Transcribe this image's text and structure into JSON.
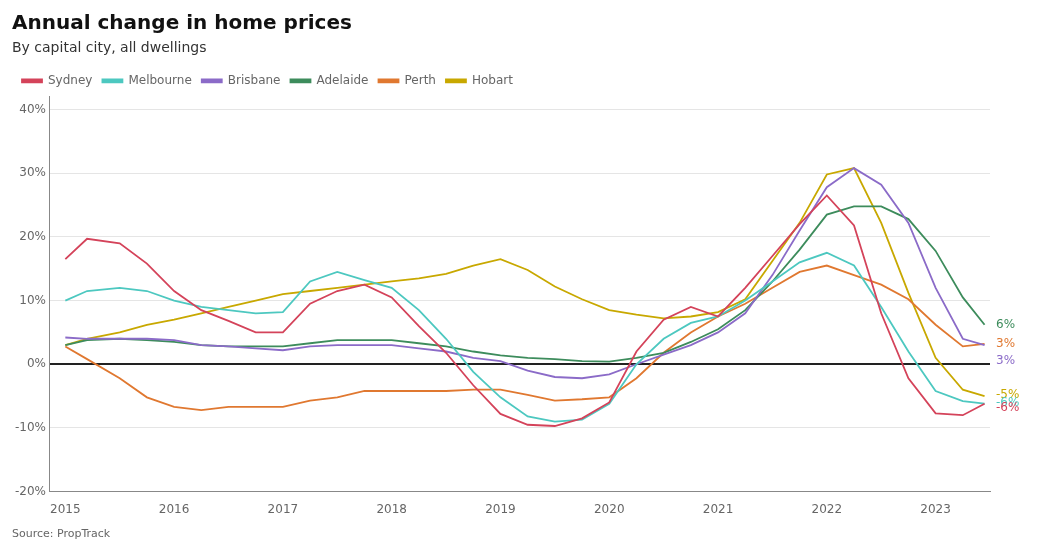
{
  "chart_data": {
    "type": "line",
    "title": "Annual change in home prices",
    "subtitle": "By capital city, all dwellings",
    "source": "Source: PropTrack",
    "legend": "top",
    "grid": true,
    "xlim": [
      2014.85,
      2023.5
    ],
    "xticks": [
      2015,
      2016,
      2017,
      2018,
      2019,
      2020,
      2021,
      2022,
      2023
    ],
    "ylim": [
      -0.2,
      0.42
    ],
    "yticks": [
      {
        "value": -0.2,
        "label": "-20%"
      },
      {
        "value": -0.1,
        "label": "-10%"
      },
      {
        "value": 0.0,
        "label": "0%"
      },
      {
        "value": 0.1,
        "label": "10%"
      },
      {
        "value": 0.2,
        "label": "20%"
      },
      {
        "value": 0.3,
        "label": "30%"
      },
      {
        "value": 0.4,
        "label": "40%"
      }
    ],
    "x": [
      2015.0,
      2015.2,
      2015.5,
      2015.75,
      2016.0,
      2016.25,
      2016.5,
      2016.75,
      2017.0,
      2017.25,
      2017.5,
      2017.75,
      2018.0,
      2018.25,
      2018.5,
      2018.75,
      2019.0,
      2019.25,
      2019.5,
      2019.75,
      2020.0,
      2020.25,
      2020.5,
      2020.75,
      2021.0,
      2021.25,
      2021.5,
      2021.75,
      2022.0,
      2022.25,
      2022.5,
      2022.75,
      2023.0,
      2023.25,
      2023.45
    ],
    "series": [
      {
        "name": "Sydney",
        "color": "#d4435a",
        "values": [
          0.165,
          0.197,
          0.19,
          0.158,
          0.115,
          0.085,
          0.068,
          0.05,
          0.05,
          0.095,
          0.115,
          0.125,
          0.105,
          0.06,
          0.018,
          -0.033,
          -0.078,
          -0.095,
          -0.097,
          -0.085,
          -0.06,
          0.02,
          0.07,
          0.09,
          0.075,
          0.12,
          0.17,
          0.22,
          0.265,
          0.218,
          0.08,
          -0.022,
          -0.077,
          -0.08,
          -0.062
        ]
      },
      {
        "name": "Melbourne",
        "color": "#4dc8c0",
        "values": [
          0.1,
          0.115,
          0.12,
          0.115,
          0.1,
          0.09,
          0.085,
          0.08,
          0.082,
          0.13,
          0.145,
          0.132,
          0.12,
          0.085,
          0.04,
          -0.012,
          -0.052,
          -0.082,
          -0.09,
          -0.087,
          -0.062,
          0.0,
          0.04,
          0.065,
          0.075,
          0.1,
          0.13,
          0.16,
          0.175,
          0.155,
          0.09,
          0.02,
          -0.042,
          -0.058,
          -0.062
        ]
      },
      {
        "name": "Brisbane",
        "color": "#8b6bc8",
        "values": [
          0.042,
          0.04,
          0.04,
          0.04,
          0.038,
          0.03,
          0.028,
          0.025,
          0.022,
          0.028,
          0.03,
          0.03,
          0.03,
          0.025,
          0.02,
          0.01,
          0.005,
          -0.01,
          -0.02,
          -0.022,
          -0.016,
          0.0,
          0.015,
          0.03,
          0.05,
          0.08,
          0.14,
          0.21,
          0.278,
          0.308,
          0.282,
          0.222,
          0.12,
          0.04,
          0.03
        ]
      },
      {
        "name": "Adelaide",
        "color": "#3d8c5c",
        "values": [
          0.03,
          0.038,
          0.04,
          0.038,
          0.035,
          0.03,
          0.028,
          0.028,
          0.028,
          0.033,
          0.038,
          0.038,
          0.038,
          0.033,
          0.028,
          0.02,
          0.014,
          0.01,
          0.008,
          0.005,
          0.004,
          0.01,
          0.018,
          0.035,
          0.055,
          0.085,
          0.13,
          0.18,
          0.235,
          0.248,
          0.248,
          0.228,
          0.178,
          0.105,
          0.062
        ]
      },
      {
        "name": "Perth",
        "color": "#e07830",
        "values": [
          0.028,
          0.008,
          -0.022,
          -0.052,
          -0.067,
          -0.072,
          -0.067,
          -0.067,
          -0.067,
          -0.057,
          -0.052,
          -0.042,
          -0.042,
          -0.042,
          -0.042,
          -0.04,
          -0.04,
          -0.048,
          -0.057,
          -0.055,
          -0.052,
          -0.022,
          0.018,
          0.05,
          0.075,
          0.095,
          0.12,
          0.145,
          0.155,
          0.14,
          0.125,
          0.102,
          0.062,
          0.028,
          0.032
        ]
      },
      {
        "name": "Hobart",
        "color": "#c8a800",
        "values": [
          0.03,
          0.04,
          0.05,
          0.062,
          0.07,
          0.08,
          0.09,
          0.1,
          0.11,
          0.115,
          0.12,
          0.125,
          0.13,
          0.135,
          0.142,
          0.155,
          0.165,
          0.148,
          0.122,
          0.102,
          0.085,
          0.078,
          0.072,
          0.075,
          0.082,
          0.102,
          0.162,
          0.222,
          0.298,
          0.308,
          0.222,
          0.112,
          0.01,
          -0.04,
          -0.05
        ]
      }
    ],
    "annotations": [
      {
        "text": "6%",
        "y": 0.062,
        "color": "#3d8c5c"
      },
      {
        "text": "3%",
        "y": 0.032,
        "color": "#e07830"
      },
      {
        "text": "3%",
        "y": 0.005,
        "color": "#8b6bc8"
      },
      {
        "text": "-5%",
        "y": -0.048,
        "color": "#c8a800"
      },
      {
        "text": "-6%",
        "y": -0.06,
        "color": "#4dc8c0"
      },
      {
        "text": "-6%",
        "y": -0.068,
        "color": "#d4435a"
      }
    ]
  }
}
